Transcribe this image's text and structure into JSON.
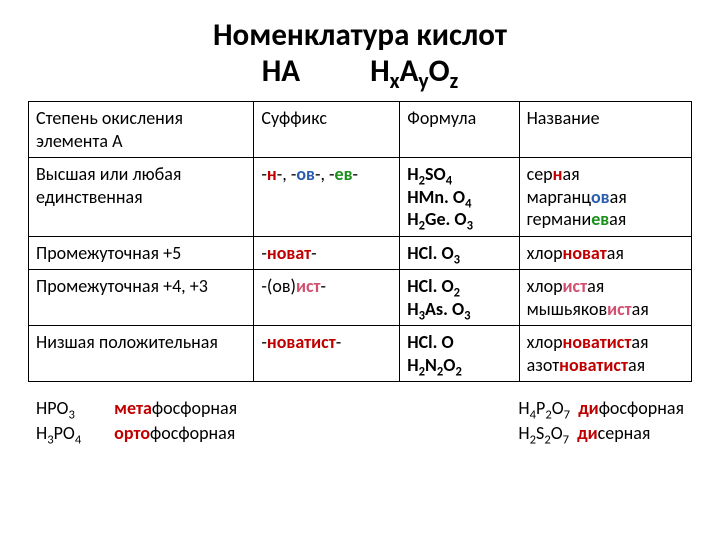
{
  "title_line1": "Номенклатура кислот",
  "title_HA": "HA",
  "title_HxAyOz_H": "H",
  "title_HxAyOz_x": "x",
  "title_HxAyOz_A": "A",
  "title_HxAyOz_y": "y",
  "title_HxAyOz_O": "O",
  "title_HxAyOz_z": "z",
  "hdr": {
    "c1": "Степень окисления элемента A",
    "c2": "Суффикс",
    "c3": "Формула",
    "c4": "Название"
  },
  "r1": {
    "ox": "Высшая или любая единственная",
    "suf_pre": "-",
    "suf_n": "н",
    "suf_mid1": "-, -",
    "suf_ov": "ов",
    "suf_mid2": "-, -",
    "suf_ev": "ев",
    "suf_end": "-",
    "f1a": "H",
    "f1b": "2",
    "f1c": "SO",
    "f1d": "4",
    "f2a": "HMn. O",
    "f2b": "4",
    "f3a": "H",
    "f3b": "2",
    "f3c": "Ge. O",
    "f3d": "3",
    "n1a": "сер",
    "n1b": "н",
    "n1c": "ая",
    "n2a": "марганц",
    "n2b": "ов",
    "n2c": "ая",
    "n3a": "германи",
    "n3b": "ев",
    "n3c": "ая"
  },
  "r2": {
    "ox": "Промежуточная +5",
    "suf_pre": "-",
    "suf_mid": "новат",
    "suf_end": "-",
    "f1a": "HCl. O",
    "f1b": "3",
    "n1a": "хлор",
    "n1b": "новат",
    "n1c": "ая"
  },
  "r3": {
    "ox": "Промежуточная +4, +3",
    "suf_pre": "-(ов)",
    "suf_mid": "ист",
    "suf_end": "-",
    "f1a": "HCl. O",
    "f1b": "2",
    "f2a": "H",
    "f2b": "3",
    "f2c": "As. O",
    "f2d": "3",
    "n1a": "хлор",
    "n1b": "ист",
    "n1c": "ая",
    "n2a": "мышьяков",
    "n2b": "ист",
    "n2c": "ая"
  },
  "r4": {
    "ox": "Низшая положительная",
    "suf_pre": "-",
    "suf_mid": "новатист",
    "suf_end": "-",
    "f1": "HCl. O",
    "f2a": "H",
    "f2b": "2",
    "f2c": "N",
    "f2d": "2",
    "f2e": "O",
    "f2f": "2",
    "n1a": "хлор",
    "n1b": "новатист",
    "n1c": "ая",
    "n2a": "азот",
    "n2b": "новатист",
    "n2c": "ая"
  },
  "foot": {
    "l1_f": "HPO",
    "l1_s": "3",
    "l1_pre": "мета",
    "l1_post": "фосфорная",
    "l2_fa": "H",
    "l2_fb": "3",
    "l2_fc": "PO",
    "l2_fd": "4",
    "l2_pre": "орто",
    "l2_post": "фосфорная",
    "r1_fa": "H",
    "r1_fb": "4",
    "r1_fc": "P",
    "r1_fd": "2",
    "r1_fe": "O",
    "r1_ff": "7",
    "r1_pre": "ди",
    "r1_post": "фосфорная",
    "r2_fa": "H",
    "r2_fb": "2",
    "r2_fc": "S",
    "r2_fd": "2",
    "r2_fe": "O",
    "r2_ff": "7",
    "r2_pre": "ди",
    "r2_post": "серная"
  }
}
